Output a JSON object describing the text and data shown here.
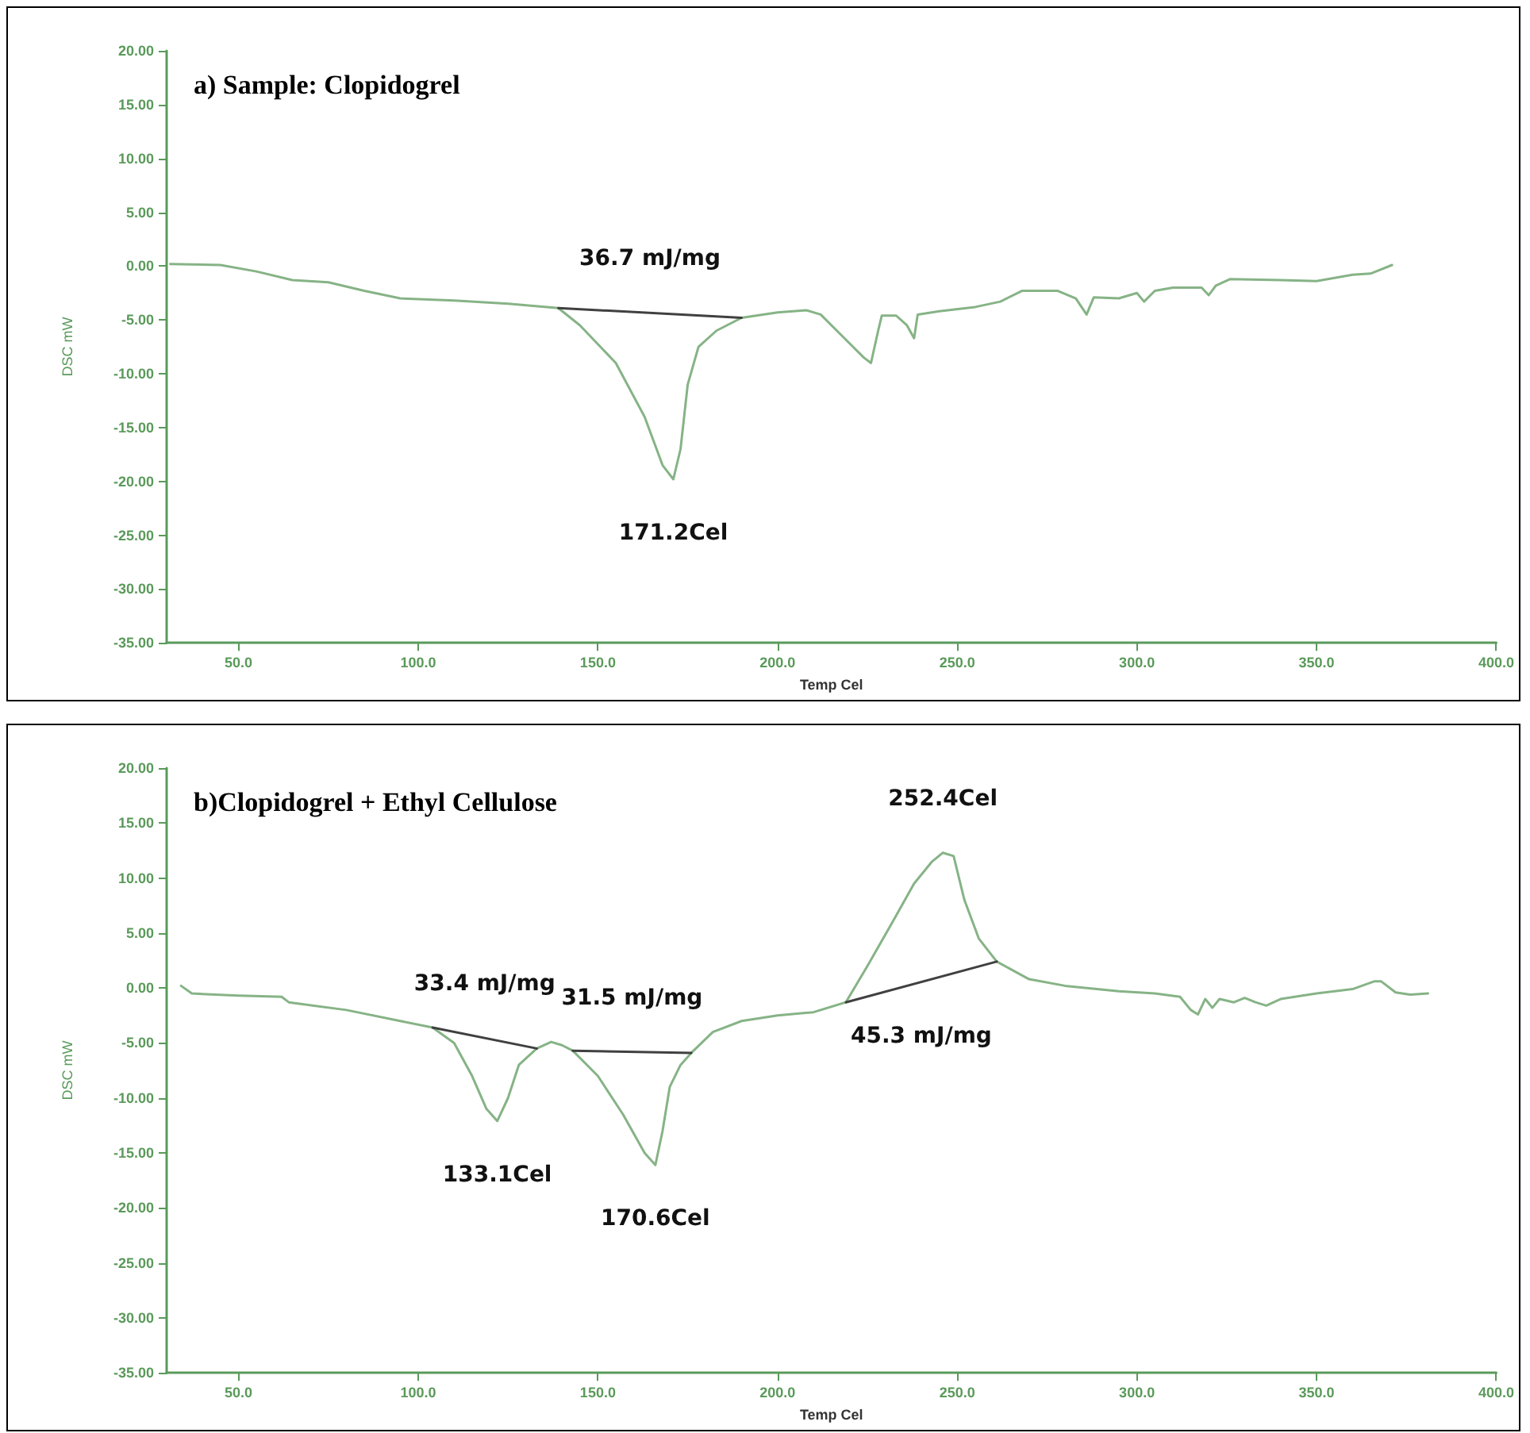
{
  "chart_data": [
    {
      "type": "line",
      "title": "a) Sample: Clopidogrel",
      "xlabel": "Temp Cel",
      "ylabel": "DSC mW",
      "marker": "none",
      "xlim": [
        30,
        400
      ],
      "ylim": [
        -35,
        20
      ],
      "xticks": [
        {
          "value": 50,
          "label": "50.0"
        },
        {
          "value": 100,
          "label": "100.0"
        },
        {
          "value": 150,
          "label": "150.0"
        },
        {
          "value": 200,
          "label": "200.0"
        },
        {
          "value": 250,
          "label": "250.0"
        },
        {
          "value": 300,
          "label": "300.0"
        },
        {
          "value": 350,
          "label": "350.0"
        },
        {
          "value": 400,
          "label": "400.0"
        }
      ],
      "yticks": [
        {
          "value": 20,
          "label": "20.00"
        },
        {
          "value": 15,
          "label": "15.00"
        },
        {
          "value": 10,
          "label": "10.00"
        },
        {
          "value": 5,
          "label": "5.00"
        },
        {
          "value": 0,
          "label": "0.00"
        },
        {
          "value": -5,
          "label": "-5.00"
        },
        {
          "value": -10,
          "label": "-10.00"
        },
        {
          "value": -15,
          "label": "-15.00"
        },
        {
          "value": -20,
          "label": "-20.00"
        },
        {
          "value": -25,
          "label": "-25.00"
        },
        {
          "value": -30,
          "label": "-30.00"
        },
        {
          "value": -35,
          "label": "-35.00"
        }
      ],
      "series": [
        {
          "color": "#86b386",
          "x": [
            31,
            45,
            55,
            65,
            75,
            85,
            95,
            110,
            125,
            139,
            145,
            155,
            163,
            168,
            171,
            173,
            175,
            178,
            183,
            190,
            200,
            208,
            212,
            218,
            224,
            226,
            228,
            229,
            233,
            236,
            238,
            239,
            245,
            255,
            262,
            268,
            278,
            283,
            286,
            288,
            295,
            300,
            302,
            305,
            310,
            318,
            320,
            322,
            326,
            340,
            350,
            360,
            365,
            371
          ],
          "values": [
            0.2,
            0.1,
            -0.5,
            -1.3,
            -1.5,
            -2.3,
            -3.0,
            -3.2,
            -3.5,
            -3.9,
            -5.5,
            -9,
            -14,
            -18.5,
            -19.8,
            -17,
            -11,
            -7.5,
            -6,
            -4.8,
            -4.3,
            -4.1,
            -4.5,
            -6.5,
            -8.5,
            -9.0,
            -6,
            -4.6,
            -4.6,
            -5.5,
            -6.7,
            -4.5,
            -4.2,
            -3.8,
            -3.3,
            -2.3,
            -2.3,
            -3.0,
            -4.5,
            -2.9,
            -3.0,
            -2.5,
            -3.3,
            -2.3,
            -2.0,
            -2.0,
            -2.7,
            -1.8,
            -1.2,
            -1.3,
            -1.4,
            -0.8,
            -0.7,
            0.1
          ]
        },
        {
          "color": "#404040",
          "x": [
            139,
            190
          ],
          "values": [
            -3.9,
            -4.8
          ]
        }
      ],
      "annotations": [
        {
          "text": "36.7 mJ/mg",
          "x": 164.5,
          "y": -4.35
        },
        {
          "text": "171.2Cel",
          "x": 171,
          "y": -19.8
        }
      ]
    },
    {
      "type": "line",
      "title": "b)Clopidogrel + Ethyl Cellulose",
      "xlabel": "Temp Cel",
      "ylabel": "DSC mW",
      "marker": "none",
      "xlim": [
        30,
        400
      ],
      "ylim": [
        -35,
        20
      ],
      "xticks": [
        {
          "value": 50,
          "label": "50.0"
        },
        {
          "value": 100,
          "label": "100.0"
        },
        {
          "value": 150,
          "label": "150.0"
        },
        {
          "value": 200,
          "label": "200.0"
        },
        {
          "value": 250,
          "label": "250.0"
        },
        {
          "value": 300,
          "label": "300.0"
        },
        {
          "value": 350,
          "label": "350.0"
        },
        {
          "value": 400,
          "label": "400.0"
        }
      ],
      "yticks": [
        {
          "value": 20,
          "label": "20.00"
        },
        {
          "value": 15,
          "label": "15.00"
        },
        {
          "value": 10,
          "label": "10.00"
        },
        {
          "value": 5,
          "label": "5.00"
        },
        {
          "value": 0,
          "label": "0.00"
        },
        {
          "value": -5,
          "label": "-5.00"
        },
        {
          "value": -10,
          "label": "-10.00"
        },
        {
          "value": -15,
          "label": "-15.00"
        },
        {
          "value": -20,
          "label": "-20.00"
        },
        {
          "value": -25,
          "label": "-25.00"
        },
        {
          "value": -30,
          "label": "-30.00"
        },
        {
          "value": -35,
          "label": "-35.00"
        }
      ],
      "series": [
        {
          "color": "#86b386",
          "x": [
            34,
            37,
            50,
            62,
            64,
            80,
            95,
            104,
            110,
            115,
            119,
            122,
            125,
            128,
            133,
            137,
            140,
            143,
            150,
            157,
            163,
            166,
            168,
            170,
            173,
            176,
            182,
            190,
            200,
            210,
            219,
            225,
            232,
            238,
            243,
            246,
            249,
            252,
            256,
            261,
            270,
            280,
            295,
            305,
            312,
            315,
            317,
            319,
            321,
            323,
            327,
            330,
            333,
            336,
            340,
            350,
            360,
            366,
            368,
            372,
            376,
            381
          ],
          "values": [
            0.2,
            -0.5,
            -0.7,
            -0.8,
            -1.3,
            -2.0,
            -3.0,
            -3.6,
            -5,
            -8,
            -11,
            -12.1,
            -10,
            -7,
            -5.5,
            -4.9,
            -5.2,
            -5.7,
            -8,
            -11.5,
            -15,
            -16.1,
            -13,
            -9,
            -7,
            -5.9,
            -4,
            -3,
            -2.5,
            -2.2,
            -1.3,
            2,
            6,
            9.5,
            11.5,
            12.3,
            12,
            8,
            4.5,
            2.4,
            0.8,
            0.2,
            -0.3,
            -0.5,
            -0.8,
            -2.0,
            -2.4,
            -1.0,
            -1.8,
            -1.0,
            -1.3,
            -0.9,
            -1.3,
            -1.6,
            -1.0,
            -0.5,
            -0.1,
            0.6,
            0.6,
            -0.4,
            -0.6,
            -0.5
          ]
        },
        {
          "color": "#404040",
          "x": [
            104,
            133
          ],
          "values": [
            -3.6,
            -5.5
          ]
        },
        {
          "color": "#404040",
          "x": [
            143,
            176
          ],
          "values": [
            -5.7,
            -5.9
          ]
        },
        {
          "color": "#404040",
          "x": [
            219,
            261
          ],
          "values": [
            -1.3,
            2.4
          ]
        }
      ],
      "annotations": [
        {
          "text": "252.4Cel",
          "x": 246,
          "y": 12.3
        },
        {
          "text": "33.4 mJ/mg",
          "x": 118.5,
          "y": -4.55
        },
        {
          "text": "31.5 mJ/mg",
          "x": 159.5,
          "y": -5.8
        },
        {
          "text": "45.3 mJ/mg",
          "x": 240,
          "y": 0.55
        },
        {
          "text": "133.1Cel",
          "x": 122,
          "y": -12.1
        },
        {
          "text": "170.6Cel",
          "x": 166,
          "y": -16.1
        }
      ]
    }
  ]
}
